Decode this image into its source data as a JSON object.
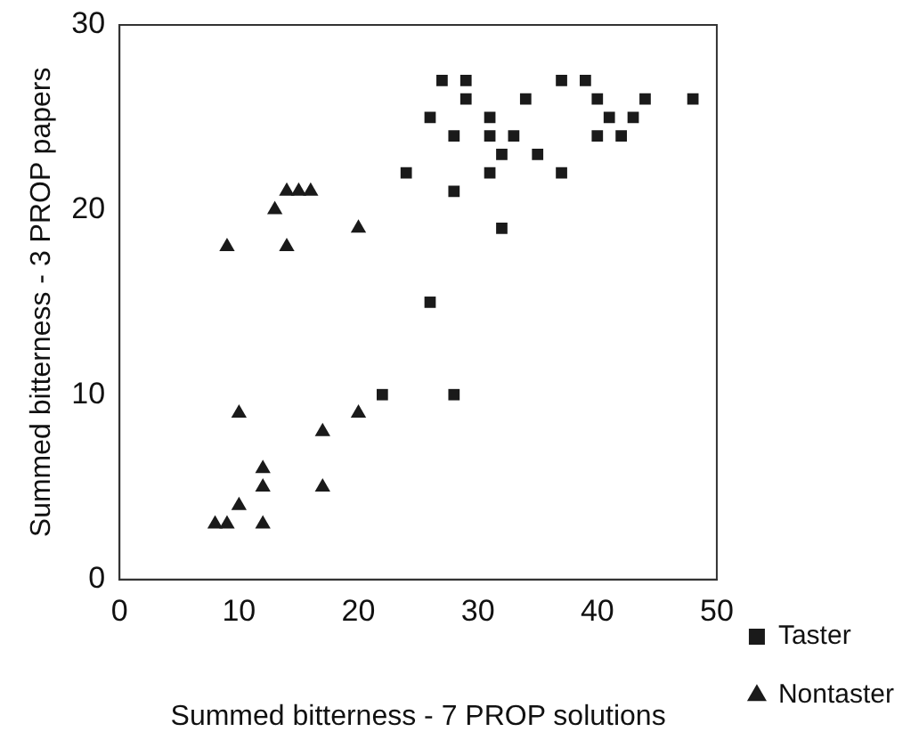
{
  "chart_data": {
    "type": "scatter",
    "xlabel": "Summed bitterness - 7 PROP solutions",
    "ylabel": "Summed bitterness - 3 PROP papers",
    "xlim": [
      0,
      50
    ],
    "xticks": [
      0,
      10,
      20,
      30,
      40,
      50
    ],
    "ylim": [
      0,
      30
    ],
    "yticks": [
      0,
      10,
      20,
      30
    ],
    "grid": false,
    "legend": "right",
    "series": [
      {
        "name": "Taster",
        "color": "#1a1a1a",
        "marker": "square",
        "x": [
          27,
          29,
          37,
          39,
          29,
          34,
          40,
          44,
          48,
          26,
          31,
          41,
          43,
          28,
          31,
          33,
          40,
          42,
          32,
          35,
          24,
          31,
          37,
          28,
          32,
          26,
          22,
          28
        ],
        "values": [
          27,
          27,
          27,
          27,
          26,
          26,
          26,
          26,
          26,
          25,
          25,
          25,
          25,
          24,
          24,
          24,
          24,
          24,
          23,
          23,
          22,
          22,
          22,
          21,
          19,
          15,
          10,
          10
        ]
      },
      {
        "name": "Nontaster",
        "color": "#1a1a1a",
        "marker": "triangle",
        "x": [
          14,
          15,
          16,
          13,
          20,
          9,
          14,
          10,
          20,
          17,
          12,
          12,
          17,
          10,
          8,
          9,
          12
        ],
        "values": [
          21,
          21,
          21,
          20,
          19,
          18,
          18,
          9,
          9,
          8,
          6,
          5,
          5,
          4,
          3,
          3,
          3
        ]
      }
    ]
  }
}
